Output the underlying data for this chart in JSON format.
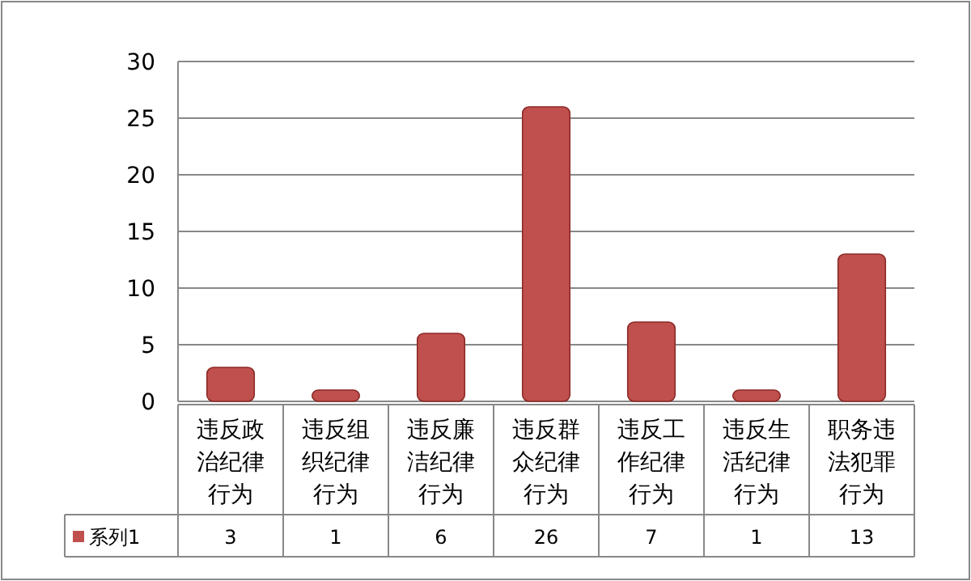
{
  "chart_data": {
    "type": "bar",
    "categories": [
      "违反政治纪律行为",
      "违反组织纪律行为",
      "违反廉洁纪律行为",
      "违反群众纪律行为",
      "违反工作纪律行为",
      "违反生活纪律行为",
      "职务违法犯罪行为"
    ],
    "series": [
      {
        "name": "系列1",
        "color": "#c0504d",
        "values": [
          3,
          1,
          6,
          26,
          7,
          1,
          13
        ]
      }
    ],
    "ylim": [
      0,
      30
    ],
    "yticks": [
      0,
      5,
      10,
      15,
      20,
      25,
      30
    ],
    "grid": "y",
    "legend": "bottom",
    "data_labels": true
  }
}
